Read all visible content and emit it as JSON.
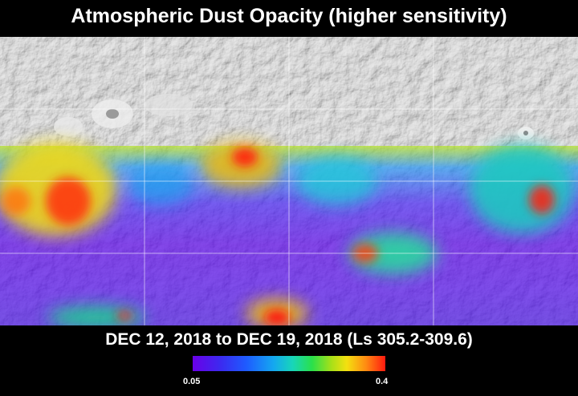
{
  "title": "Atmospheric Dust Opacity (higher sensitivity)",
  "date_range": "DEC 12, 2018 to DEC 19, 2018 (Ls 305.2-309.6)",
  "colorbar": {
    "min_label": "0.05",
    "max_label": "0.4"
  },
  "colors": {
    "background": "#000000",
    "grid": "#ffffff",
    "no_data_terrain": "#cfcfcf"
  }
}
